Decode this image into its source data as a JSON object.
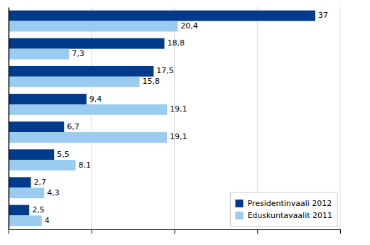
{
  "chart_data": {
    "type": "bar",
    "orientation": "horizontal",
    "categories": [
      null,
      null,
      null,
      null,
      null,
      null,
      null,
      null
    ],
    "series": [
      {
        "name": "Presidentinvaali 2012",
        "color": "#003a8c",
        "values": [
          37,
          18.8,
          17.5,
          9.4,
          6.7,
          5.5,
          2.7,
          2.5
        ],
        "value_labels": [
          "37",
          "18,8",
          "17,5",
          "9,4",
          "6,7",
          "5,5",
          "2,7",
          "2,5"
        ]
      },
      {
        "name": "Eduskuntavaalit 2011",
        "color": "#99ccee",
        "values": [
          20.4,
          7.3,
          15.8,
          19.1,
          19.1,
          8.1,
          4.3,
          4.0
        ],
        "value_labels": [
          "20,4",
          "7,3",
          "15,8",
          "19,1",
          "19,1",
          "8,1",
          "4,3",
          "4"
        ]
      }
    ],
    "xlim": [
      0,
      40
    ],
    "xticks": [
      10,
      20,
      30,
      40
    ],
    "grid": true,
    "tick_labels": false,
    "data_labels": true,
    "legend": "lower right"
  }
}
